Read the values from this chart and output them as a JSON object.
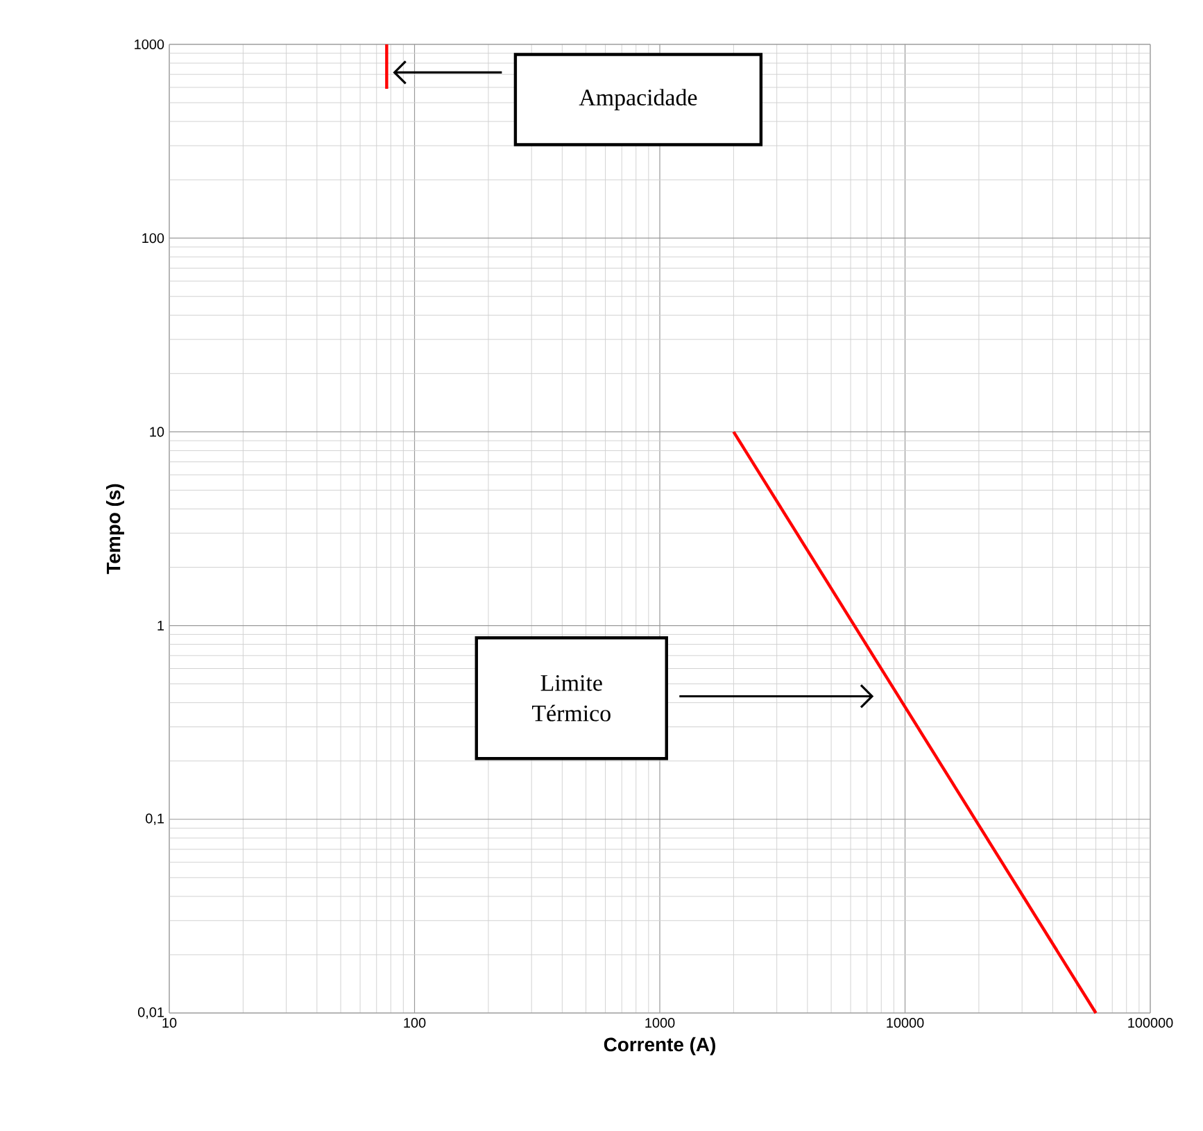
{
  "chart_data": {
    "type": "line",
    "xlabel": "Corrente (A)",
    "ylabel": "Tempo (s)",
    "log": "xy",
    "grid": true,
    "xlim": [
      10,
      100000
    ],
    "ylim": [
      0.01,
      1000
    ],
    "xticks": [
      10,
      100,
      1000,
      10000,
      100000
    ],
    "yticks": [
      {
        "value": 0.01,
        "label": "0,01"
      },
      {
        "value": 0.1,
        "label": "0,1"
      },
      1,
      10,
      100,
      1000
    ],
    "series": [
      {
        "color": "#ff0000",
        "x": [
          77,
          77
        ],
        "values": [
          590,
          1000
        ]
      },
      {
        "color": "#ff0000",
        "x": [
          2000,
          60000
        ],
        "values": [
          10,
          0.01
        ]
      }
    ],
    "annotations": [
      "Ampacidade",
      "Limite Térmico"
    ]
  }
}
